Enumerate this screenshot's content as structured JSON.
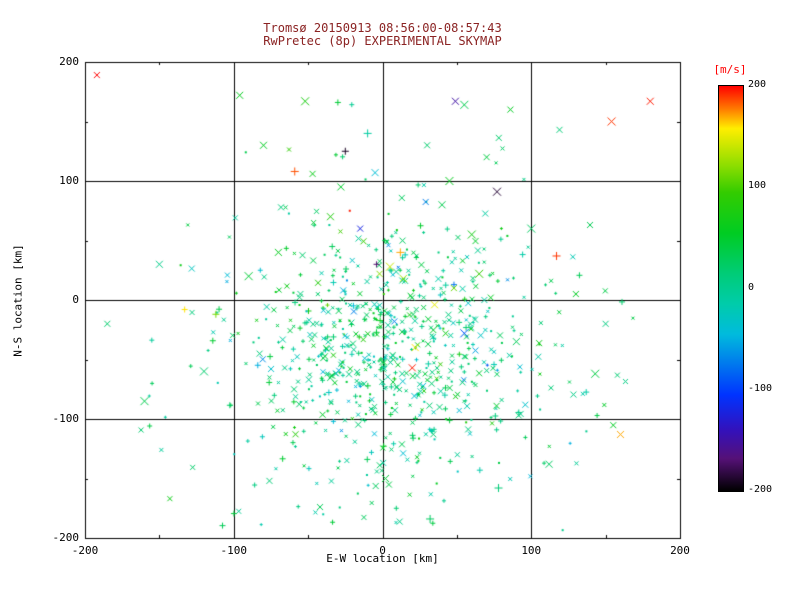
{
  "window": {
    "background": "#ffffff",
    "title_color": "#8b2323"
  },
  "title": {
    "line1": "Tromsø 20150913 08:56:00-08:57:43",
    "line2": "RwPretec (8p) EXPERIMENTAL SKYMAP"
  },
  "chart_data": {
    "type": "scatter",
    "title": "Tromsø 20150913 08:56:00-08:57:43",
    "subtitle": "RwPretec (8p) EXPERIMENTAL SKYMAP",
    "xlabel": "E-W location [km]",
    "ylabel": "N-S location [km]",
    "xlim": [
      -200,
      200
    ],
    "ylim": [
      -200,
      200
    ],
    "xticks": [
      -200,
      -100,
      0,
      100,
      200
    ],
    "yticks": [
      -200,
      -100,
      0,
      100,
      200
    ],
    "grid_lines": [
      -100,
      0,
      100
    ],
    "minor_tick_step": 50,
    "grid": true,
    "color_unit": "m/s",
    "colorbar": {
      "label": "[m/s]",
      "label_color": "#ff0000",
      "ticks": [
        200,
        100,
        0,
        -100,
        -200
      ],
      "vmin": -200,
      "vmax": 200,
      "stops": [
        {
          "v": 200,
          "c": "#ff0000"
        },
        {
          "v": 178,
          "c": "#ff7700"
        },
        {
          "v": 158,
          "c": "#ffee00"
        },
        {
          "v": 120,
          "c": "#88dd00"
        },
        {
          "v": 95,
          "c": "#33cc00"
        },
        {
          "v": 55,
          "c": "#00cc22"
        },
        {
          "v": 15,
          "c": "#00cc77"
        },
        {
          "v": -15,
          "c": "#00ccaa"
        },
        {
          "v": -45,
          "c": "#00bbdd"
        },
        {
          "v": -75,
          "c": "#0077ee"
        },
        {
          "v": -105,
          "c": "#0033ff"
        },
        {
          "v": -140,
          "c": "#3311bb"
        },
        {
          "v": -168,
          "c": "#551177"
        },
        {
          "v": -200,
          "c": "#000000"
        }
      ]
    },
    "outlier_points": [
      [
        -192,
        189,
        200,
        "x"
      ],
      [
        -96,
        172,
        60,
        "x"
      ],
      [
        -52,
        167,
        75,
        "x"
      ],
      [
        -30,
        166,
        45,
        "+"
      ],
      [
        49,
        167,
        -150,
        "x"
      ],
      [
        55,
        164,
        35,
        "x"
      ],
      [
        86,
        160,
        55,
        "x"
      ],
      [
        180,
        167,
        195,
        "x"
      ],
      [
        154,
        150,
        190,
        "x"
      ],
      [
        119,
        143,
        15,
        "x"
      ],
      [
        -25,
        125,
        -190,
        "+"
      ],
      [
        -59,
        108,
        185,
        "+"
      ],
      [
        -47,
        106,
        65,
        "x"
      ],
      [
        -28,
        95,
        50,
        "x"
      ],
      [
        77,
        91,
        -185,
        "x"
      ],
      [
        -22,
        75,
        195,
        "."
      ],
      [
        -35,
        70,
        80,
        "x"
      ],
      [
        117,
        37,
        190,
        "+"
      ],
      [
        -133,
        -8,
        160,
        "+"
      ],
      [
        -112,
        -12,
        115,
        "+"
      ],
      [
        -160,
        -85,
        35,
        "x"
      ],
      [
        -185,
        -20,
        20,
        "x"
      ],
      [
        160,
        -113,
        170,
        "x"
      ],
      [
        143,
        -62,
        40,
        "x"
      ],
      [
        96,
        -88,
        -35,
        "x"
      ],
      [
        112,
        -138,
        25,
        "x"
      ],
      [
        78,
        -158,
        15,
        "+"
      ],
      [
        -42,
        -174,
        30,
        "x"
      ],
      [
        2,
        -150,
        45,
        "x"
      ],
      [
        32,
        -184,
        25,
        "+"
      ],
      [
        -76,
        -152,
        15,
        "x"
      ],
      [
        20,
        -57,
        195,
        "x"
      ],
      [
        55,
        -28,
        -90,
        "x"
      ],
      [
        8,
        -18,
        -70,
        "x"
      ],
      [
        35,
        -4,
        150,
        "x"
      ],
      [
        12,
        40,
        170,
        "+"
      ],
      [
        -4,
        30,
        -170,
        "+"
      ],
      [
        22,
        -40,
        160,
        "x"
      ],
      [
        5,
        28,
        140,
        "x"
      ],
      [
        -2,
        22,
        120,
        "x"
      ],
      [
        14,
        18,
        130,
        "x"
      ],
      [
        65,
        22,
        95,
        "x"
      ],
      [
        48,
        10,
        110,
        "x"
      ],
      [
        -70,
        40,
        60,
        "x"
      ],
      [
        -90,
        20,
        45,
        "x"
      ],
      [
        130,
        5,
        55,
        "x"
      ],
      [
        90,
        -35,
        30,
        "x"
      ],
      [
        60,
        55,
        70,
        "x"
      ],
      [
        -15,
        60,
        -120,
        "x"
      ],
      [
        40,
        80,
        35,
        "x"
      ],
      [
        -120,
        -60,
        20,
        "x"
      ],
      [
        150,
        -20,
        10,
        "x"
      ],
      [
        -150,
        30,
        5,
        "x"
      ],
      [
        100,
        60,
        25,
        "x"
      ],
      [
        70,
        120,
        40,
        "x"
      ],
      [
        -80,
        130,
        55,
        "x"
      ],
      [
        -10,
        140,
        -10,
        "+"
      ],
      [
        30,
        130,
        20,
        "x"
      ],
      [
        -5,
        107,
        -40,
        "x"
      ],
      [
        45,
        100,
        60,
        "x"
      ]
    ],
    "dense_clusters": [
      {
        "n": 520,
        "cx": 5,
        "cy": -35,
        "sx": 42,
        "sy": 48,
        "v_mean": 15,
        "v_sigma": 28,
        "seed": 7
      },
      {
        "n": 270,
        "cx": -5,
        "cy": -45,
        "sx": 85,
        "sy": 78,
        "v_mean": 10,
        "v_sigma": 32,
        "seed": 13
      }
    ]
  }
}
